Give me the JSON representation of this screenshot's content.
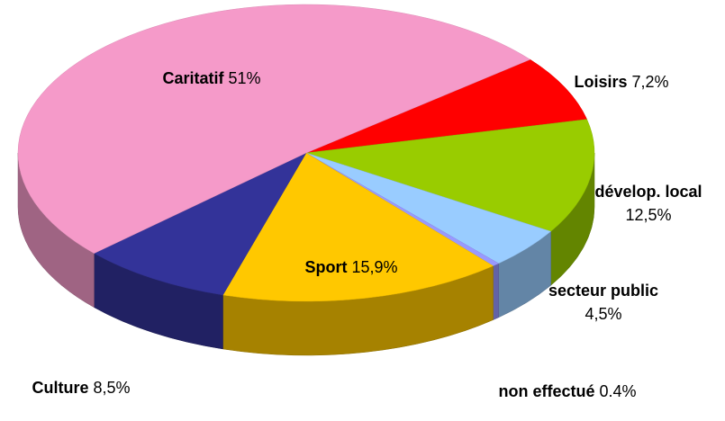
{
  "chart_data": {
    "type": "pie",
    "categories": [
      "Loisirs",
      "dévelop. local",
      "secteur public",
      "non effectué",
      "Sport",
      "Culture",
      "Caritatif"
    ],
    "values": [
      7.2,
      12.5,
      4.5,
      0.4,
      15.9,
      8.5,
      51
    ],
    "value_labels": [
      "7,2%",
      "12,5%",
      "4,5%",
      "0.4%",
      "15,9%",
      "8,5%",
      "51%"
    ],
    "colors": [
      "#ff0000",
      "#99cc00",
      "#99ccff",
      "#9999ff",
      "#ffc800",
      "#333399",
      "#f59ac9"
    ]
  }
}
